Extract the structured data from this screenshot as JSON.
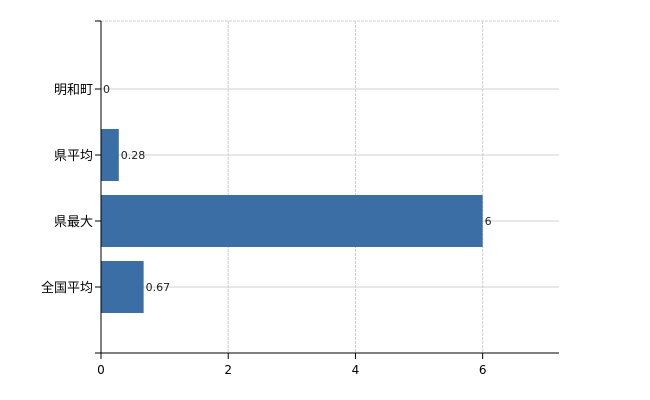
{
  "chart_data": {
    "type": "bar",
    "orientation": "horizontal",
    "categories": [
      "明和町",
      "県平均",
      "県最大",
      "全国平均"
    ],
    "values": [
      0,
      0.28,
      6,
      0.67
    ],
    "data_labels": [
      "0",
      "0.28",
      "6",
      "0.67"
    ],
    "x_ticks": [
      "0",
      "2",
      "4",
      "6"
    ],
    "xlim": [
      0,
      7.2
    ],
    "grid": true,
    "bar_color": "#3a6ea5",
    "grid_color": "#d0d0d0",
    "title": "",
    "xlabel": "",
    "ylabel": ""
  }
}
